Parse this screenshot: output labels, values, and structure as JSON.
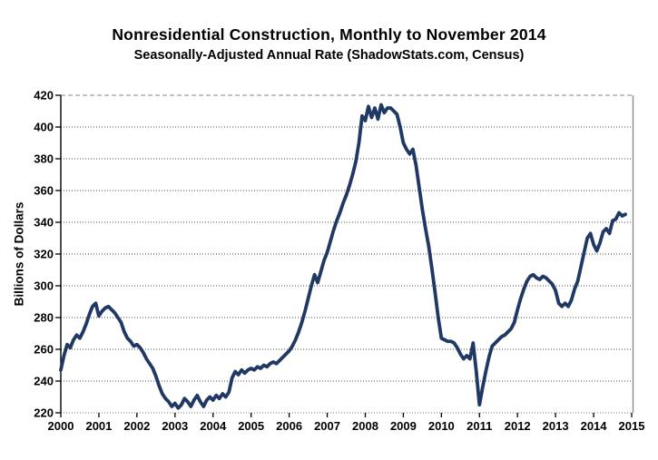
{
  "chart": {
    "title": "Nonresidential Construction, Monthly to November 2014",
    "subtitle": "Seasonally-Adjusted Annual Rate (ShadowStats.com, Census)",
    "ylabel": "Billions of Dollars"
  },
  "chart_data": {
    "type": "line",
    "title": "Nonresidential Construction, Monthly to November 2014",
    "subtitle": "Seasonally-Adjusted Annual Rate (ShadowStats.com, Census)",
    "xlabel": "",
    "ylabel": "Billions of Dollars",
    "frequency": "monthly",
    "period": "Jan 2000 - Nov 2014",
    "x_start_year": 2000,
    "x_ticks": [
      2000,
      2001,
      2002,
      2003,
      2004,
      2005,
      2006,
      2007,
      2008,
      2009,
      2010,
      2011,
      2012,
      2013,
      2014,
      2015
    ],
    "y_ticks": [
      220,
      240,
      260,
      280,
      300,
      320,
      340,
      360,
      380,
      400,
      420
    ],
    "ylim": [
      220,
      420
    ],
    "xlim": [
      2000,
      2015
    ],
    "grid": "horizontal-dotted",
    "legend": "none",
    "line_color": "#1F3864",
    "line_width": 3.8,
    "series": [
      {
        "name": "Nonresidential construction spending, SAAR ($ billions)",
        "values": [
          247,
          256,
          263,
          261,
          266,
          269,
          267,
          271,
          276,
          282,
          287,
          289,
          281,
          284,
          286,
          287,
          285,
          283,
          280,
          277,
          271,
          267,
          265,
          262,
          263,
          261,
          258,
          254,
          251,
          248,
          243,
          237,
          232,
          229,
          227,
          224,
          226,
          223,
          225,
          229,
          227,
          224,
          228,
          231,
          227,
          224,
          228,
          230,
          228,
          231,
          229,
          232,
          230,
          233,
          242,
          246,
          244,
          247,
          245,
          247,
          248,
          247,
          249,
          248,
          250,
          249,
          251,
          252,
          251,
          253,
          255,
          257,
          259,
          262,
          266,
          271,
          277,
          284,
          292,
          300,
          307,
          302,
          309,
          316,
          321,
          328,
          335,
          341,
          346,
          352,
          357,
          363,
          370,
          378,
          390,
          407,
          404,
          413,
          406,
          412,
          405,
          414,
          409,
          412,
          412,
          410,
          408,
          400,
          390,
          386,
          383,
          386,
          376,
          362,
          348,
          336,
          325,
          311,
          296,
          280,
          267,
          266,
          265,
          265,
          264,
          261,
          257,
          254,
          256,
          254,
          264,
          246,
          225,
          236,
          246,
          255,
          262,
          264,
          266,
          268,
          269,
          271,
          273,
          277,
          285,
          292,
          298,
          303,
          306,
          307,
          305,
          304,
          306,
          305,
          303,
          301,
          297,
          289,
          287,
          289,
          287,
          291,
          298,
          303,
          312,
          321,
          330,
          333,
          326,
          322,
          327,
          334,
          336,
          333,
          341,
          342,
          346,
          344,
          345
        ]
      }
    ]
  }
}
